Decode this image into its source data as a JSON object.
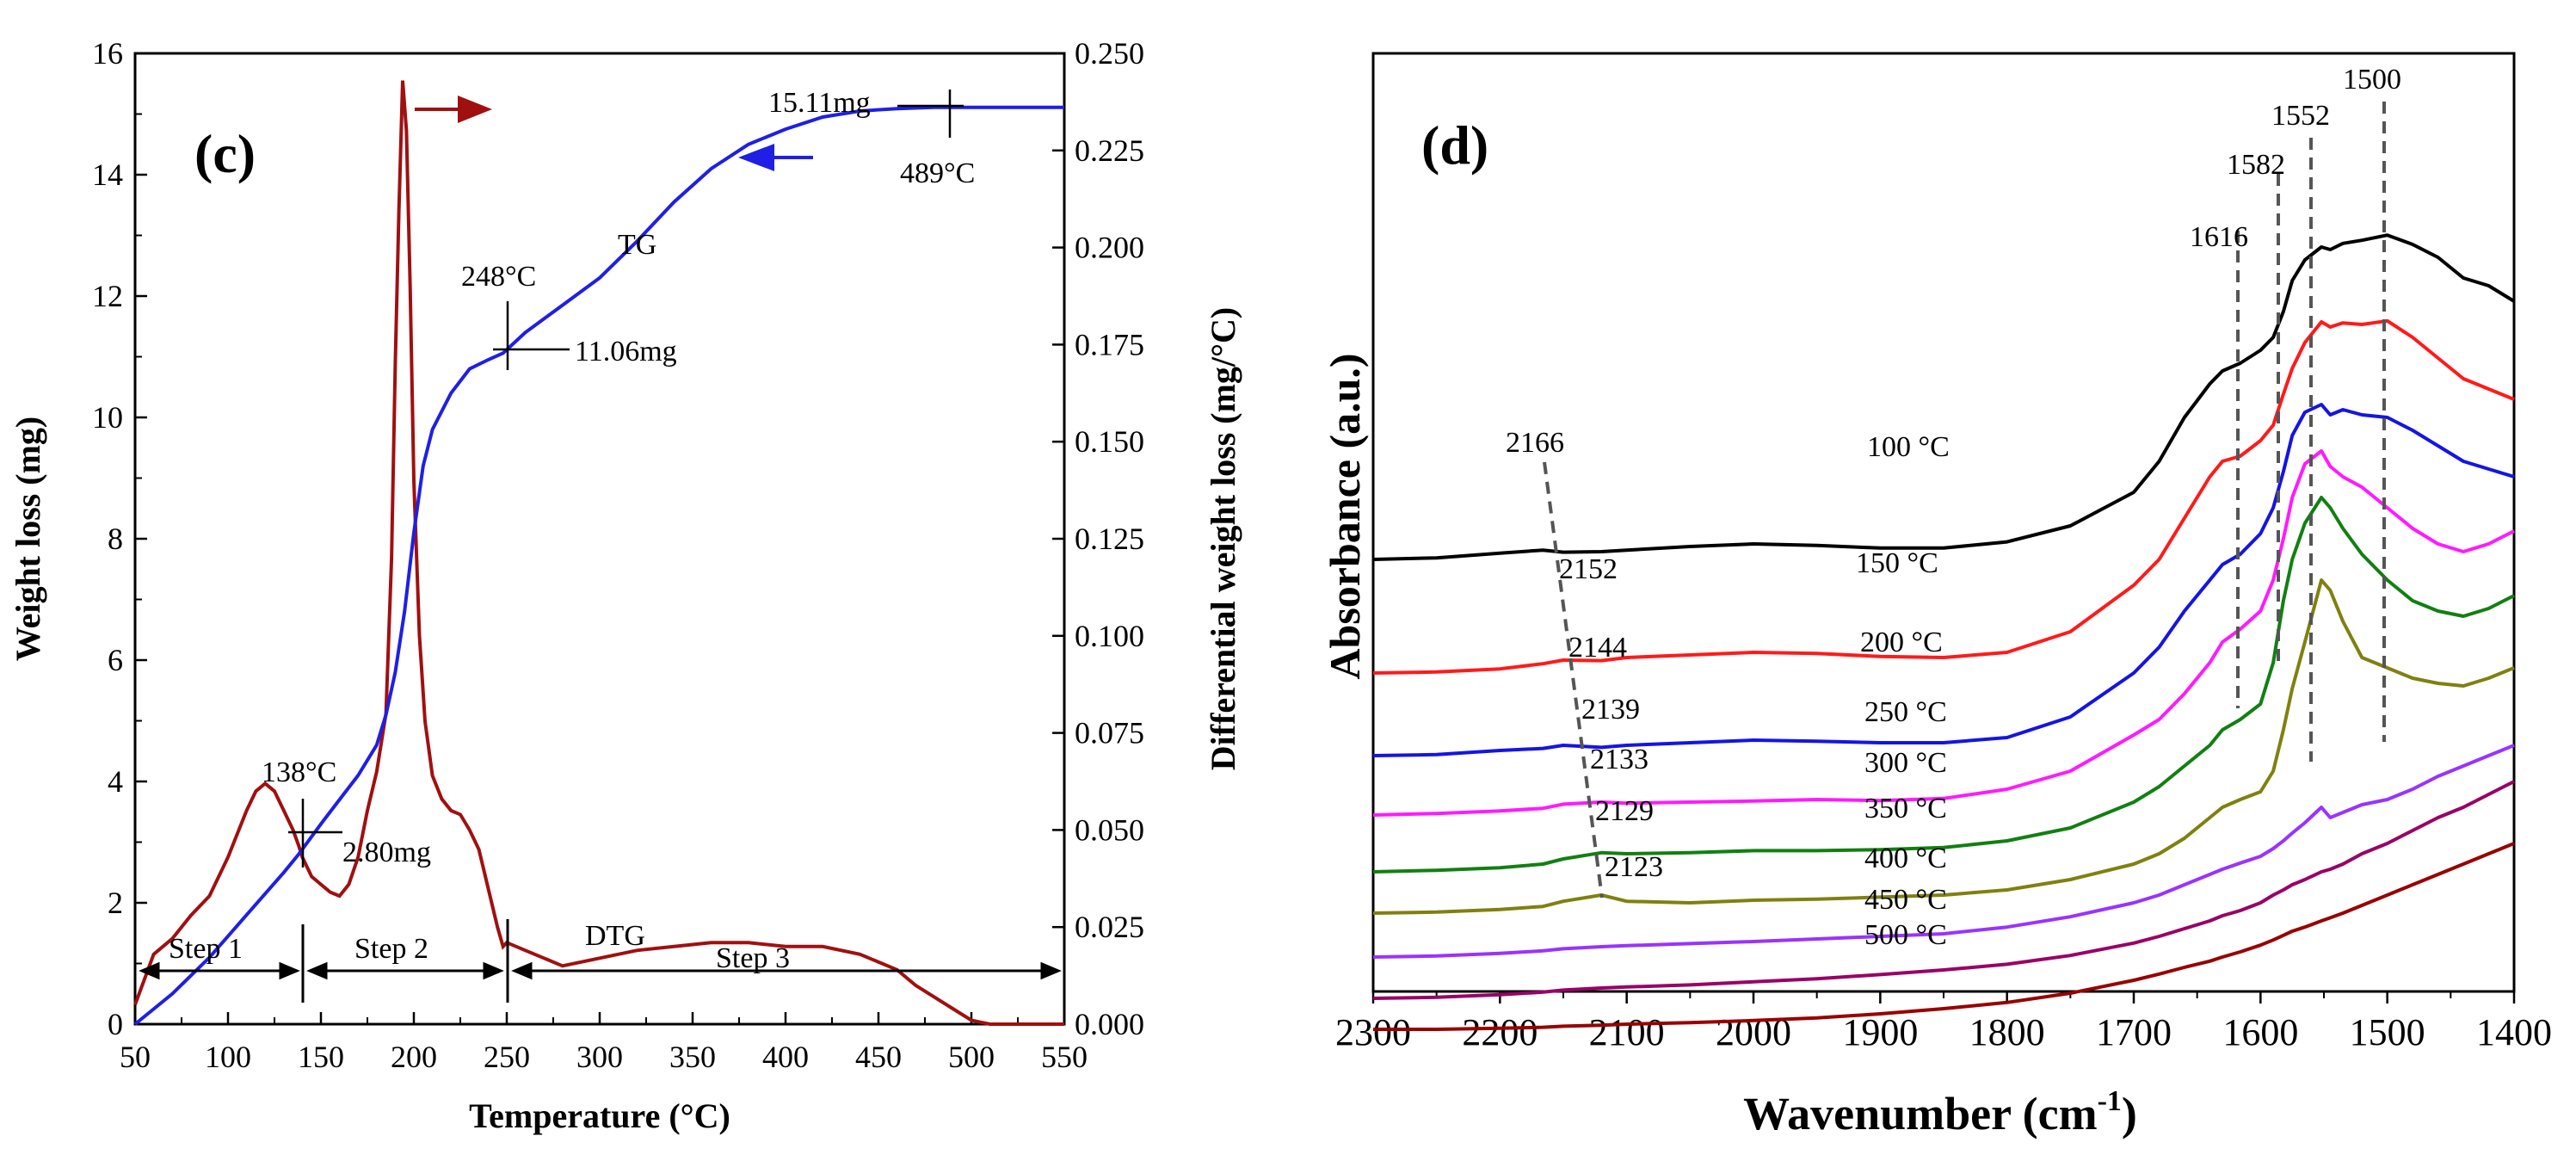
{
  "panels": [
    {
      "id": "c",
      "panel_label": "(c)",
      "xlabel": "Temperature (°C)",
      "ylabel_left": "Weight loss (mg)",
      "ylabel_right": "Differential weight loss (mg/°C)",
      "xticks": [
        "50",
        "100",
        "150",
        "200",
        "250",
        "300",
        "350",
        "400",
        "450",
        "500",
        "550"
      ],
      "yticks_left": [
        "0",
        "2",
        "4",
        "6",
        "8",
        "10",
        "12",
        "14",
        "16"
      ],
      "yticks_right": [
        "0.000",
        "0.025",
        "0.050",
        "0.075",
        "0.100",
        "0.125",
        "0.150",
        "0.175",
        "0.200",
        "0.225",
        "0.250"
      ],
      "annotations": {
        "tg": "TG",
        "dtg": "DTG",
        "step1": "Step 1",
        "step2": "Step 2",
        "step3": "Step 3",
        "t138": "138°C",
        "m280": "2.80mg",
        "t248": "248°C",
        "m1106": "11.06mg",
        "m1511": "15.11mg",
        "t489": "489°C"
      }
    },
    {
      "id": "d",
      "panel_label": "(d)",
      "xlabel_main": "Wavenumber (cm",
      "xlabel_sup": "-1",
      "xlabel_tail": ")",
      "ylabel": "Absorbance (a.u.)",
      "xticks": [
        "2300",
        "2200",
        "2100",
        "2000",
        "1900",
        "1800",
        "1700",
        "1600",
        "1500",
        "1400"
      ],
      "peak_labels": [
        "2166",
        "2152",
        "2144",
        "2139",
        "2133",
        "2129",
        "2123"
      ],
      "band_labels": [
        "1616",
        "1582",
        "1552",
        "1500"
      ],
      "temp_labels": [
        "100 °C",
        "150 °C",
        "200 °C",
        "250 °C",
        "300 °C",
        "350 °C",
        "400 °C",
        "450 °C",
        "500 °C"
      ]
    }
  ],
  "chart_data": [
    {
      "type": "line",
      "title": "(c)",
      "xlabel": "Temperature (°C)",
      "ylabel": "Weight loss (mg)",
      "y2label": "Differential weight loss (mg/°C)",
      "xlim": [
        50,
        550
      ],
      "ylim": [
        0,
        16
      ],
      "y2lim": [
        0,
        0.25
      ],
      "series": [
        {
          "name": "TG",
          "axis": "left",
          "color": "#1f1fe6",
          "x": [
            50,
            70,
            90,
            110,
            120,
            130,
            138,
            150,
            160,
            170,
            180,
            185,
            190,
            195,
            200,
            205,
            210,
            220,
            230,
            240,
            248,
            260,
            280,
            300,
            320,
            340,
            360,
            380,
            400,
            420,
            440,
            460,
            480,
            489,
            500,
            510,
            520,
            530,
            540,
            550
          ],
          "y": [
            0,
            0.5,
            1.1,
            1.8,
            2.15,
            2.5,
            2.8,
            3.3,
            3.7,
            4.1,
            4.6,
            5.1,
            5.8,
            6.8,
            8.1,
            9.2,
            9.8,
            10.4,
            10.8,
            10.95,
            11.06,
            11.4,
            11.85,
            12.3,
            12.9,
            13.55,
            14.1,
            14.5,
            14.75,
            14.95,
            15.05,
            15.09,
            15.11,
            15.11,
            15.11,
            15.11,
            15.11,
            15.11,
            15.11,
            15.11
          ]
        },
        {
          "name": "DTG",
          "axis": "right",
          "color": "#a01010",
          "x": [
            50,
            60,
            70,
            80,
            90,
            100,
            110,
            115,
            120,
            125,
            130,
            135,
            138,
            140,
            145,
            150,
            155,
            160,
            165,
            170,
            175,
            180,
            185,
            188,
            190,
            192,
            194,
            196,
            198,
            200,
            203,
            206,
            210,
            215,
            220,
            225,
            230,
            235,
            240,
            245,
            248,
            250,
            260,
            280,
            300,
            320,
            340,
            360,
            380,
            400,
            420,
            440,
            460,
            470,
            480,
            490,
            500,
            510,
            520,
            530,
            540,
            550
          ],
          "y": [
            0.005,
            0.018,
            0.022,
            0.028,
            0.033,
            0.043,
            0.055,
            0.06,
            0.062,
            0.06,
            0.055,
            0.05,
            0.046,
            0.043,
            0.038,
            0.036,
            0.034,
            0.033,
            0.036,
            0.043,
            0.055,
            0.065,
            0.08,
            0.12,
            0.17,
            0.21,
            0.243,
            0.23,
            0.19,
            0.14,
            0.1,
            0.078,
            0.064,
            0.058,
            0.055,
            0.054,
            0.05,
            0.045,
            0.035,
            0.025,
            0.02,
            0.021,
            0.019,
            0.015,
            0.017,
            0.019,
            0.02,
            0.021,
            0.021,
            0.02,
            0.02,
            0.018,
            0.014,
            0.01,
            0.007,
            0.004,
            0.001,
            0,
            0,
            0,
            0,
            0
          ]
        }
      ],
      "annotations": [
        {
          "text": "138°C",
          "x": 138,
          "y": 2.8,
          "axis": "left"
        },
        {
          "text": "2.80mg",
          "x": 138,
          "y": 2.8,
          "axis": "left"
        },
        {
          "text": "248°C",
          "x": 248,
          "y": 11.06,
          "axis": "left"
        },
        {
          "text": "11.06mg",
          "x": 248,
          "y": 11.06,
          "axis": "left"
        },
        {
          "text": "15.11mg",
          "x": 489,
          "y": 15.11,
          "axis": "left"
        },
        {
          "text": "489°C",
          "x": 489,
          "y": 15.11,
          "axis": "left"
        }
      ],
      "steps": [
        {
          "name": "Step 1",
          "x_range": [
            50,
            138
          ]
        },
        {
          "name": "Step 2",
          "x_range": [
            138,
            248
          ]
        },
        {
          "name": "Step 3",
          "x_range": [
            248,
            550
          ]
        }
      ]
    },
    {
      "type": "line",
      "title": "(d)",
      "xlabel": "Wavenumber (cm-1)",
      "ylabel": "Absorbance (a.u.)",
      "xlim": [
        2300,
        1400
      ],
      "x_reversed": true,
      "y_units": "arbitrary (curves vertically offset)",
      "x": [
        2300,
        2250,
        2200,
        2166,
        2150,
        2120,
        2100,
        2050,
        2000,
        1950,
        1900,
        1850,
        1800,
        1750,
        1700,
        1680,
        1660,
        1640,
        1630,
        1616,
        1600,
        1590,
        1582,
        1575,
        1565,
        1552,
        1545,
        1535,
        1520,
        1500,
        1480,
        1460,
        1440,
        1420,
        1400
      ],
      "series": [
        {
          "name": "100 °C",
          "color": "#000000",
          "y": [
            0.8,
            0.803,
            0.812,
            0.818,
            0.814,
            0.815,
            0.818,
            0.825,
            0.83,
            0.827,
            0.822,
            0.822,
            0.834,
            0.865,
            0.93,
            0.99,
            1.075,
            1.14,
            1.165,
            1.18,
            1.205,
            1.23,
            1.28,
            1.34,
            1.38,
            1.405,
            1.4,
            1.412,
            1.418,
            1.428,
            1.41,
            1.385,
            1.345,
            1.33,
            1.3
          ]
        },
        {
          "name": "150 °C",
          "color": "#ff1a1a",
          "y": [
            0.58,
            0.582,
            0.588,
            0.598,
            0.605,
            0.604,
            0.61,
            0.615,
            0.62,
            0.618,
            0.612,
            0.61,
            0.62,
            0.66,
            0.75,
            0.8,
            0.88,
            0.96,
            0.99,
            1.0,
            1.03,
            1.06,
            1.12,
            1.17,
            1.22,
            1.26,
            1.25,
            1.258,
            1.255,
            1.262,
            1.23,
            1.19,
            1.15,
            1.13,
            1.11
          ]
        },
        {
          "name": "200 °C",
          "color": "#1414e6",
          "y": [
            0.42,
            0.422,
            0.43,
            0.434,
            0.44,
            0.436,
            0.44,
            0.445,
            0.45,
            0.448,
            0.445,
            0.445,
            0.455,
            0.495,
            0.58,
            0.63,
            0.7,
            0.76,
            0.79,
            0.81,
            0.85,
            0.9,
            0.97,
            1.04,
            1.085,
            1.1,
            1.08,
            1.09,
            1.08,
            1.075,
            1.05,
            1.02,
            0.99,
            0.975,
            0.96
          ]
        },
        {
          "name": "250 °C",
          "color": "#ff1aff",
          "y": [
            0.305,
            0.308,
            0.313,
            0.318,
            0.326,
            0.33,
            0.328,
            0.33,
            0.332,
            0.335,
            0.333,
            0.337,
            0.355,
            0.39,
            0.46,
            0.49,
            0.54,
            0.6,
            0.64,
            0.665,
            0.7,
            0.76,
            0.84,
            0.92,
            0.985,
            1.01,
            0.98,
            0.96,
            0.94,
            0.9,
            0.86,
            0.83,
            0.815,
            0.83,
            0.855
          ]
        },
        {
          "name": "300 °C",
          "color": "#118011",
          "y": [
            0.195,
            0.198,
            0.203,
            0.21,
            0.22,
            0.232,
            0.23,
            0.232,
            0.236,
            0.236,
            0.238,
            0.242,
            0.255,
            0.28,
            0.33,
            0.36,
            0.4,
            0.44,
            0.47,
            0.49,
            0.52,
            0.6,
            0.72,
            0.8,
            0.87,
            0.92,
            0.9,
            0.86,
            0.81,
            0.76,
            0.72,
            0.7,
            0.69,
            0.705,
            0.73
          ]
        },
        {
          "name": "350 °C",
          "color": "#808010",
          "y": [
            0.115,
            0.117,
            0.122,
            0.128,
            0.138,
            0.15,
            0.138,
            0.135,
            0.14,
            0.142,
            0.146,
            0.15,
            0.16,
            0.18,
            0.21,
            0.23,
            0.26,
            0.3,
            0.32,
            0.335,
            0.35,
            0.39,
            0.47,
            0.55,
            0.64,
            0.76,
            0.74,
            0.68,
            0.61,
            0.59,
            0.57,
            0.56,
            0.555,
            0.57,
            0.59
          ]
        },
        {
          "name": "400 °C",
          "color": "#9933ff",
          "y": [
            0.03,
            0.032,
            0.037,
            0.042,
            0.046,
            0.05,
            0.052,
            0.056,
            0.06,
            0.065,
            0.07,
            0.075,
            0.088,
            0.108,
            0.135,
            0.15,
            0.17,
            0.19,
            0.2,
            0.212,
            0.225,
            0.24,
            0.255,
            0.27,
            0.29,
            0.32,
            0.3,
            0.31,
            0.325,
            0.335,
            0.355,
            0.38,
            0.4,
            0.42,
            0.44
          ]
        },
        {
          "name": "450 °C",
          "color": "#990066",
          "y": [
            -0.05,
            -0.048,
            -0.043,
            -0.038,
            -0.034,
            -0.03,
            -0.028,
            -0.024,
            -0.018,
            -0.012,
            -0.004,
            0.005,
            0.016,
            0.033,
            0.057,
            0.07,
            0.085,
            0.1,
            0.11,
            0.12,
            0.135,
            0.15,
            0.16,
            0.17,
            0.18,
            0.195,
            0.2,
            0.21,
            0.23,
            0.25,
            0.275,
            0.3,
            0.32,
            0.345,
            0.37
          ]
        },
        {
          "name": "500 °C",
          "color": "#990000",
          "y": [
            -0.11,
            -0.11,
            -0.108,
            -0.106,
            -0.104,
            -0.102,
            -0.1,
            -0.097,
            -0.093,
            -0.088,
            -0.08,
            -0.07,
            -0.058,
            -0.04,
            -0.015,
            -0.003,
            0.01,
            0.022,
            0.03,
            0.04,
            0.053,
            0.063,
            0.072,
            0.08,
            0.088,
            0.1,
            0.106,
            0.115,
            0.13,
            0.15,
            0.17,
            0.19,
            0.21,
            0.23,
            0.25
          ]
        }
      ],
      "peak_guides": [
        {
          "labels": [
            "2166",
            "2152",
            "2144",
            "2139",
            "2133",
            "2129",
            "2123"
          ]
        },
        {
          "band": "1616"
        },
        {
          "band": "1582"
        },
        {
          "band": "1552"
        },
        {
          "band": "1500"
        }
      ]
    }
  ]
}
